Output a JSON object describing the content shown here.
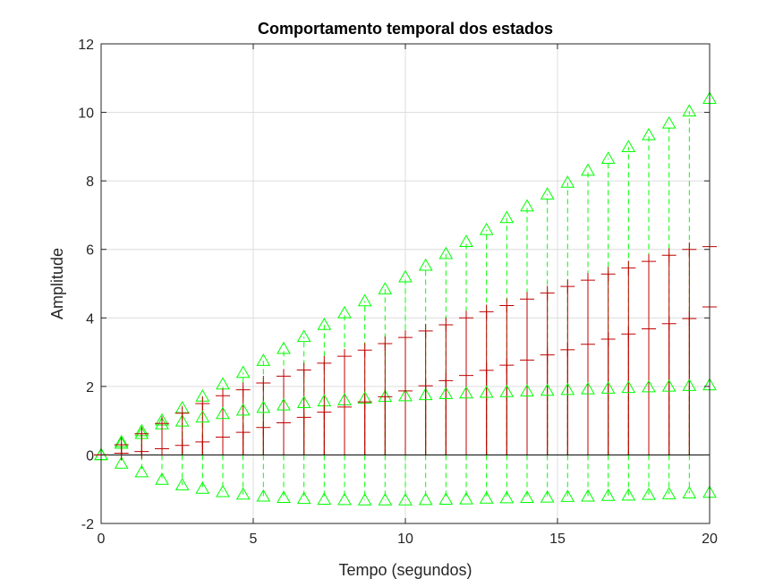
{
  "chart_data": {
    "type": "stem",
    "title": "Comportamento temporal dos estados",
    "xlabel": "Tempo (segundos)",
    "ylabel": "Amplitude",
    "xlim": [
      0,
      20
    ],
    "ylim": [
      -2,
      12
    ],
    "xticks": [
      "0",
      "5",
      "10",
      "15",
      "20"
    ],
    "yticks": [
      "-2",
      "0",
      "2",
      "4",
      "6",
      "8",
      "10",
      "12"
    ],
    "grid": true,
    "x": [
      0,
      0.667,
      1.333,
      2,
      2.667,
      3.333,
      4,
      4.667,
      5.333,
      6,
      6.667,
      7.333,
      8,
      8.667,
      9.333,
      10,
      10.667,
      11.333,
      12,
      12.667,
      13.333,
      14,
      14.667,
      15.333,
      16,
      16.667,
      17.333,
      18,
      18.667,
      19.333,
      20
    ],
    "series": [
      {
        "marker": "triangle",
        "color": "#00ff00",
        "style": "dashed",
        "values": [
          0,
          0.38,
          0.7,
          1.01,
          1.37,
          1.71,
          2.06,
          2.4,
          2.75,
          3.1,
          3.45,
          3.8,
          4.14,
          4.49,
          4.84,
          5.19,
          5.53,
          5.87,
          6.22,
          6.57,
          6.92,
          7.26,
          7.61,
          7.95,
          8.3,
          8.65,
          8.99,
          9.34,
          9.68,
          10.03,
          10.4
        ]
      },
      {
        "marker": "triangle",
        "color": "#00ff00",
        "style": "dashed",
        "values": [
          0,
          0.33,
          0.62,
          0.9,
          0.98,
          1.1,
          1.2,
          1.3,
          1.38,
          1.45,
          1.52,
          1.57,
          1.6,
          1.65,
          1.7,
          1.72,
          1.75,
          1.78,
          1.8,
          1.82,
          1.84,
          1.86,
          1.88,
          1.9,
          1.92,
          1.94,
          1.96,
          1.98,
          2.0,
          2.02,
          2.04
        ]
      },
      {
        "marker": "triangle",
        "color": "#00ff00",
        "style": "dashed",
        "values": [
          0,
          -0.25,
          -0.5,
          -0.72,
          -0.88,
          -0.98,
          -1.08,
          -1.15,
          -1.21,
          -1.25,
          -1.28,
          -1.3,
          -1.31,
          -1.32,
          -1.32,
          -1.32,
          -1.31,
          -1.3,
          -1.29,
          -1.27,
          -1.26,
          -1.25,
          -1.24,
          -1.22,
          -1.21,
          -1.19,
          -1.18,
          -1.16,
          -1.14,
          -1.12,
          -1.1
        ]
      },
      {
        "marker": "plus",
        "color": "#c00000",
        "style": "solid",
        "values": [
          0,
          0.3,
          0.62,
          0.92,
          1.22,
          1.5,
          1.73,
          1.9,
          2.1,
          2.3,
          2.48,
          2.68,
          2.88,
          3.06,
          3.25,
          3.43,
          3.62,
          3.8,
          4.0,
          4.18,
          4.36,
          4.55,
          4.73,
          4.92,
          5.1,
          5.28,
          5.46,
          5.65,
          5.83,
          6.0,
          6.08
        ]
      },
      {
        "marker": "plus",
        "color": "#c00000",
        "style": "solid",
        "values": [
          0,
          0.05,
          0.1,
          0.18,
          0.28,
          0.38,
          0.52,
          0.66,
          0.8,
          0.94,
          1.1,
          1.25,
          1.4,
          1.55,
          1.7,
          1.87,
          2.02,
          2.17,
          2.32,
          2.47,
          2.62,
          2.77,
          2.92,
          3.07,
          3.23,
          3.38,
          3.53,
          3.68,
          3.83,
          3.98,
          4.32
        ]
      }
    ]
  }
}
